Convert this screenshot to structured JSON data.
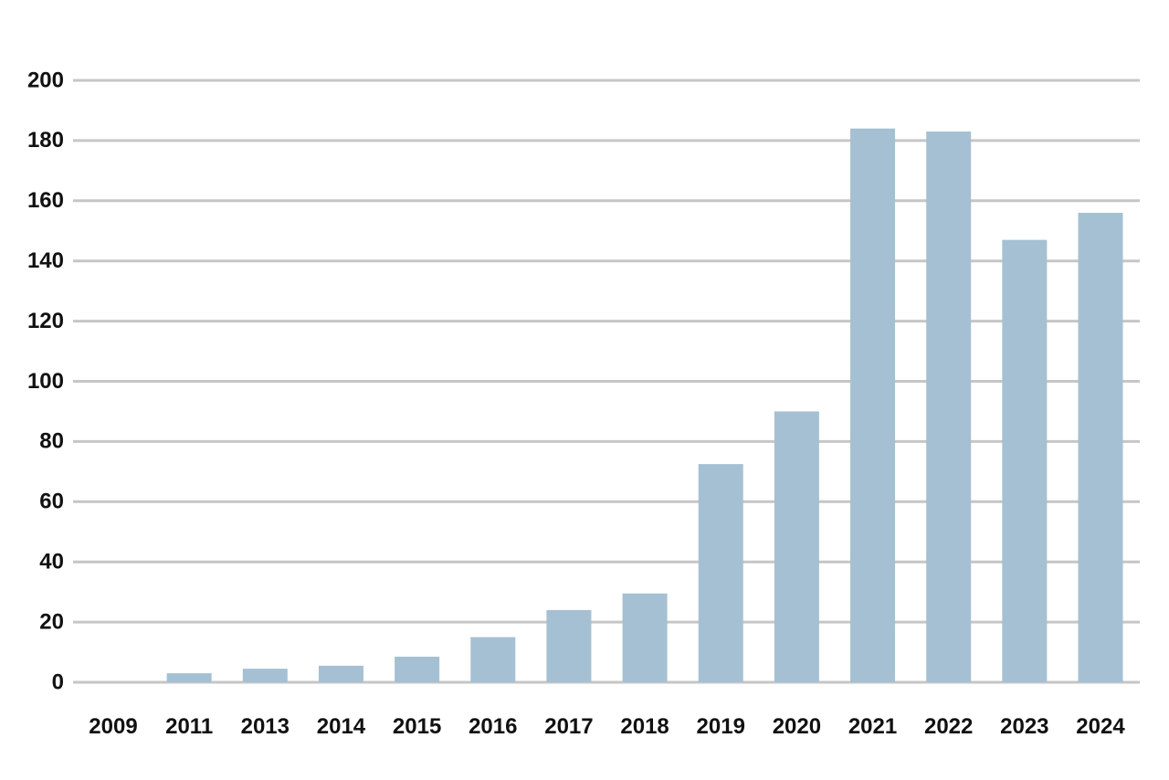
{
  "chart_data": {
    "type": "bar",
    "categories": [
      "2009",
      "2011",
      "2013",
      "2014",
      "2015",
      "2016",
      "2017",
      "2018",
      "2019",
      "2020",
      "2021",
      "2022",
      "2023",
      "2024"
    ],
    "values": [
      0,
      3,
      4.5,
      5.5,
      8.5,
      15,
      24,
      29.5,
      72.5,
      90,
      184,
      183,
      147,
      156
    ],
    "title": "",
    "xlabel": "",
    "ylabel": "",
    "ylim": [
      0,
      200
    ],
    "yticks": [
      "0",
      "20",
      "40",
      "60",
      "80",
      "100",
      "120",
      "140",
      "160",
      "180",
      "200"
    ],
    "grid": true,
    "legend": "none",
    "colors": {
      "bar": "#a5c0d2",
      "grid": "#c6c6c6",
      "text": "#111111"
    }
  }
}
